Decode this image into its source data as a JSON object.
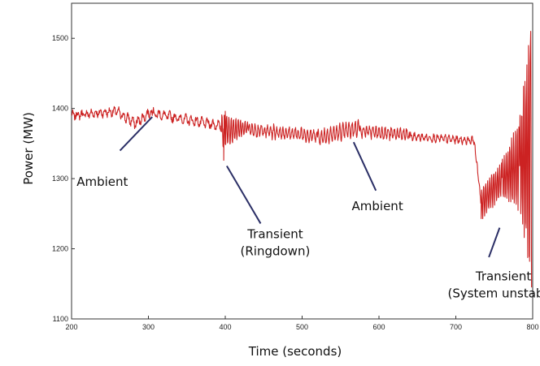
{
  "chart_data": {
    "type": "line",
    "title": "",
    "xlabel": "Time (seconds)",
    "ylabel": "Power (MW)",
    "xlim": [
      200,
      800
    ],
    "ylim": [
      1100,
      1550
    ],
    "x_ticks": [
      200,
      300,
      400,
      500,
      600,
      700,
      800
    ],
    "y_ticks": [
      1100,
      1200,
      1300,
      1400,
      1500
    ],
    "grid": false,
    "series": [
      {
        "name": "Power",
        "color": "#cc2222",
        "segments": [
          {
            "x0": 200,
            "x1": 260,
            "base0": 1390,
            "base1": 1396,
            "amp": 4,
            "period": 6,
            "noise": 4
          },
          {
            "x0": 260,
            "x1": 285,
            "base0": 1394,
            "base1": 1378,
            "amp": 6,
            "period": 6,
            "noise": 4
          },
          {
            "x0": 285,
            "x1": 305,
            "base0": 1380,
            "base1": 1397,
            "amp": 5,
            "period": 6,
            "noise": 4
          },
          {
            "x0": 305,
            "x1": 395,
            "base0": 1393,
            "base1": 1375,
            "amp": 5,
            "period": 7,
            "noise": 4
          },
          {
            "x0": 395,
            "x1": 430,
            "base0": 1368,
            "base1": 1372,
            "amp": 26,
            "amp_end": 7,
            "period": 3,
            "noise": 3
          },
          {
            "x0": 430,
            "x1": 520,
            "base0": 1370,
            "base1": 1361,
            "amp": 8,
            "period": 4,
            "noise": 4
          },
          {
            "x0": 520,
            "x1": 575,
            "base0": 1358,
            "base1": 1373,
            "amp": 10,
            "period": 4,
            "noise": 4
          },
          {
            "x0": 575,
            "x1": 640,
            "base0": 1368,
            "base1": 1362,
            "amp": 7,
            "period": 4,
            "noise": 4
          },
          {
            "x0": 640,
            "x1": 724,
            "base0": 1360,
            "base1": 1354,
            "amp": 4,
            "period": 5,
            "noise": 3
          },
          {
            "x0": 724,
            "x1": 733,
            "base0": 1353,
            "base1": 1265,
            "amp": 4,
            "period": 3,
            "noise": 3
          },
          {
            "x0": 733,
            "x1": 760,
            "base0": 1265,
            "base1": 1300,
            "amp": 22,
            "amp_end": 25,
            "period": 2.6,
            "noise": 3
          },
          {
            "x0": 760,
            "x1": 783,
            "base0": 1300,
            "base1": 1320,
            "amp": 25,
            "amp_end": 65,
            "period": 2.4,
            "noise": 3
          },
          {
            "x0": 783,
            "x1": 797,
            "base0": 1320,
            "base1": 1340,
            "amp": 65,
            "amp_end": 175,
            "period": 2.2,
            "noise": 3
          }
        ],
        "extremes": [
          {
            "x": 398,
            "y": 1326
          },
          {
            "x": 400,
            "y": 1396
          },
          {
            "x": 733,
            "y": 1243
          },
          {
            "x": 796,
            "y": 1182
          },
          {
            "x": 797.5,
            "y": 1510
          },
          {
            "x": 798.5,
            "y": 1145
          }
        ]
      }
    ],
    "annotations": [
      {
        "lines": [
          "Ambient"
        ],
        "text_x": 240,
        "text_y": 1290,
        "pointer": [
          [
            263,
            1340
          ],
          [
            305,
            1388
          ]
        ]
      },
      {
        "lines": [
          "Transient",
          "(Ringdown)"
        ],
        "text_x": 465,
        "text_y": 1215,
        "pointer": [
          [
            402,
            1318
          ],
          [
            446,
            1236
          ]
        ]
      },
      {
        "lines": [
          "Ambient"
        ],
        "text_x": 598,
        "text_y": 1255,
        "pointer": [
          [
            567,
            1352
          ],
          [
            596,
            1283
          ]
        ]
      },
      {
        "lines": [
          "Transient",
          "(System unstable)"
        ],
        "text_x": 762,
        "text_y": 1155,
        "pointer": [
          [
            757,
            1230
          ],
          [
            743,
            1188
          ]
        ]
      }
    ]
  }
}
